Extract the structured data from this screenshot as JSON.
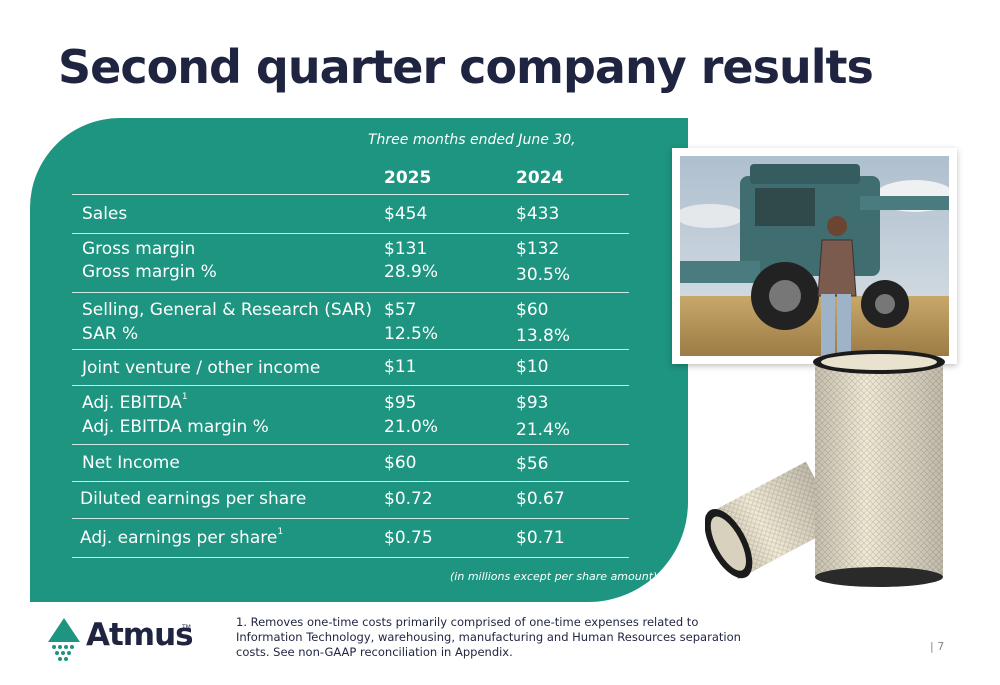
{
  "title": "Second quarter company results",
  "table": {
    "period_label": "Three months ended June 30,",
    "columns": [
      "2025",
      "2024"
    ],
    "rows": [
      {
        "label": "Sales",
        "v2025": "$454",
        "v2024": "$433"
      },
      {
        "label": "Gross margin",
        "v2025": "$131",
        "v2024": "$132"
      },
      {
        "label": "Gross margin %",
        "v2025": "28.9%",
        "v2024": "30.5%"
      },
      {
        "label": "Selling, General & Research (SAR)",
        "v2025": "$57",
        "v2024": "$60"
      },
      {
        "label": "SAR %",
        "v2025": "12.5%",
        "v2024": "13.8%"
      },
      {
        "label": "Joint venture / other income",
        "v2025": "$11",
        "v2024": "$10"
      },
      {
        "label": "Adj. EBITDA",
        "footnote": "1",
        "v2025": "$95",
        "v2024": "$93"
      },
      {
        "label": "Adj. EBITDA margin %",
        "v2025": "21.0%",
        "v2024": "21.4%"
      },
      {
        "label": "Net Income",
        "v2025": "$60",
        "v2024": "$56"
      },
      {
        "label": "Diluted earnings per share",
        "v2025": "$0.72",
        "v2024": "$0.67"
      },
      {
        "label": "Adj. earnings per share",
        "footnote": "1",
        "v2025": "$0.75",
        "v2024": "$0.71"
      }
    ],
    "units_note": "(in millions except per share amount)"
  },
  "footnote": "1.  Removes one-time costs primarily comprised of one-time expenses related to Information Technology, warehousing, manufacturing and Human Resources separation costs. See non-GAAP reconciliation in Appendix.",
  "logo": {
    "text": "Atmus",
    "tm": "TM"
  },
  "page_number": "| 7",
  "colors": {
    "panel": "#1d9580",
    "title": "#1f2440",
    "logo_teal": "#1d9580"
  }
}
